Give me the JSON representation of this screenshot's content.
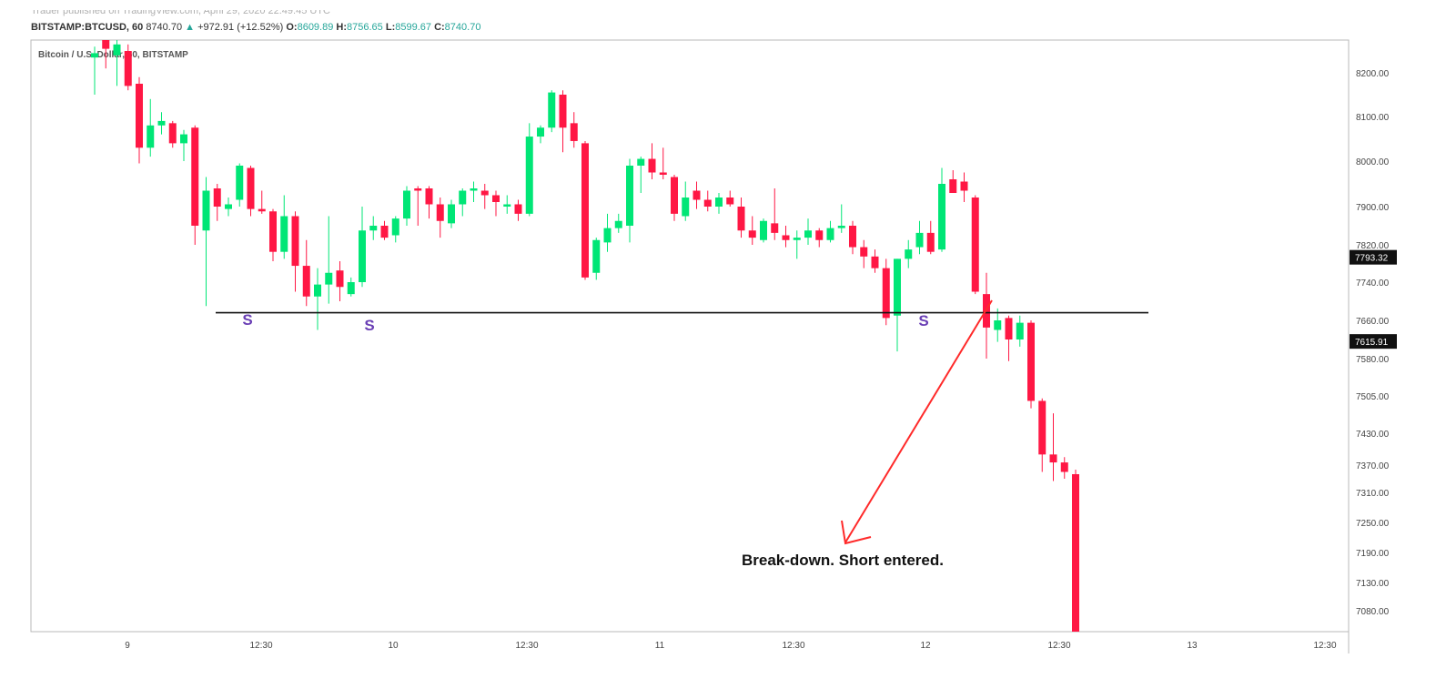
{
  "header": {
    "top_line": "Trader published on TradingView.com, April 29, 2020 22:49:45 UTC",
    "symbol": "BITSTAMP:BTCUSD, 60",
    "last": "8740.70",
    "change": "+972.91 (+12.52%)",
    "open_label": "O:",
    "open": "8609.89",
    "high_label": "H:",
    "high": "8756.65",
    "low_label": "L:",
    "low": "8599.67",
    "close_label": "C:",
    "close": "8740.70"
  },
  "chart_data": {
    "type": "candlestick",
    "title": "Bitcoin / U.S. Dollar, 60, BITSTAMP",
    "up_color": "#00e676",
    "down_color": "#ff1744",
    "y_ticks": [
      8200,
      8100,
      8000,
      7900,
      7820,
      7740,
      7660,
      7580,
      7505,
      7430,
      7370,
      7310,
      7250,
      7190,
      7130,
      7080
    ],
    "y_tick_labels": [
      "8200.00",
      "8100.00",
      "8000.00",
      "7900.00",
      "7820.00",
      "7740.00",
      "7660.00",
      "7580.00",
      "7505.00",
      "7430.00",
      "7370.00",
      "7310.00",
      "7250.00",
      "7190.00",
      "7130.00",
      "7080.00"
    ],
    "x_tick_labels": [
      "9",
      "12:30",
      "10",
      "12:30",
      "11",
      "12:30",
      "12",
      "12:30",
      "13",
      "12:30"
    ],
    "price_tags": [
      {
        "label": "7793.32",
        "value": 7793.32
      },
      {
        "label": "7615.91",
        "value": 7615.91
      }
    ],
    "support_level": 7676,
    "support_markers": [
      "S",
      "S",
      "S"
    ],
    "annotation": "Break-down. Short entered.",
    "candles": [
      {
        "o": 8235,
        "h": 8260,
        "l": 8150,
        "c": 8245
      },
      {
        "o": 8300,
        "h": 8320,
        "l": 8210,
        "c": 8255
      },
      {
        "o": 8240,
        "h": 8300,
        "l": 8170,
        "c": 8265
      },
      {
        "o": 8250,
        "h": 8265,
        "l": 8160,
        "c": 8170
      },
      {
        "o": 8175,
        "h": 8190,
        "l": 7995,
        "c": 8030
      },
      {
        "o": 8030,
        "h": 8140,
        "l": 8010,
        "c": 8080
      },
      {
        "o": 8080,
        "h": 8110,
        "l": 8060,
        "c": 8090
      },
      {
        "o": 8085,
        "h": 8090,
        "l": 8030,
        "c": 8040
      },
      {
        "o": 8040,
        "h": 8070,
        "l": 8000,
        "c": 8060
      },
      {
        "o": 8075,
        "h": 8080,
        "l": 7820,
        "c": 7860
      },
      {
        "o": 7850,
        "h": 7965,
        "l": 7690,
        "c": 7935
      },
      {
        "o": 7940,
        "h": 7950,
        "l": 7870,
        "c": 7900
      },
      {
        "o": 7895,
        "h": 7920,
        "l": 7880,
        "c": 7905
      },
      {
        "o": 7915,
        "h": 7995,
        "l": 7900,
        "c": 7990
      },
      {
        "o": 7985,
        "h": 7990,
        "l": 7880,
        "c": 7895
      },
      {
        "o": 7895,
        "h": 7935,
        "l": 7885,
        "c": 7890
      },
      {
        "o": 7890,
        "h": 7895,
        "l": 7785,
        "c": 7805
      },
      {
        "o": 7805,
        "h": 7925,
        "l": 7790,
        "c": 7880
      },
      {
        "o": 7880,
        "h": 7890,
        "l": 7720,
        "c": 7775
      },
      {
        "o": 7775,
        "h": 7830,
        "l": 7690,
        "c": 7710
      },
      {
        "o": 7710,
        "h": 7770,
        "l": 7640,
        "c": 7735
      },
      {
        "o": 7735,
        "h": 7880,
        "l": 7695,
        "c": 7760
      },
      {
        "o": 7765,
        "h": 7785,
        "l": 7700,
        "c": 7730
      },
      {
        "o": 7715,
        "h": 7750,
        "l": 7710,
        "c": 7740
      },
      {
        "o": 7740,
        "h": 7900,
        "l": 7730,
        "c": 7850
      },
      {
        "o": 7850,
        "h": 7880,
        "l": 7830,
        "c": 7860
      },
      {
        "o": 7860,
        "h": 7870,
        "l": 7830,
        "c": 7835
      },
      {
        "o": 7840,
        "h": 7880,
        "l": 7825,
        "c": 7875
      },
      {
        "o": 7875,
        "h": 7945,
        "l": 7860,
        "c": 7935
      },
      {
        "o": 7940,
        "h": 7945,
        "l": 7860,
        "c": 7935
      },
      {
        "o": 7940,
        "h": 7945,
        "l": 7875,
        "c": 7905
      },
      {
        "o": 7905,
        "h": 7920,
        "l": 7835,
        "c": 7870
      },
      {
        "o": 7865,
        "h": 7915,
        "l": 7855,
        "c": 7905
      },
      {
        "o": 7905,
        "h": 7940,
        "l": 7880,
        "c": 7935
      },
      {
        "o": 7935,
        "h": 7955,
        "l": 7910,
        "c": 7940
      },
      {
        "o": 7935,
        "h": 7950,
        "l": 7895,
        "c": 7925
      },
      {
        "o": 7925,
        "h": 7935,
        "l": 7880,
        "c": 7910
      },
      {
        "o": 7900,
        "h": 7925,
        "l": 7885,
        "c": 7905
      },
      {
        "o": 7905,
        "h": 7915,
        "l": 7870,
        "c": 7885
      },
      {
        "o": 7885,
        "h": 8085,
        "l": 7880,
        "c": 8055
      },
      {
        "o": 8055,
        "h": 8080,
        "l": 8040,
        "c": 8075
      },
      {
        "o": 8075,
        "h": 8160,
        "l": 8065,
        "c": 8155
      },
      {
        "o": 8150,
        "h": 8160,
        "l": 8020,
        "c": 8075
      },
      {
        "o": 8085,
        "h": 8110,
        "l": 8030,
        "c": 8045
      },
      {
        "o": 8040,
        "h": 8045,
        "l": 7745,
        "c": 7750
      },
      {
        "o": 7760,
        "h": 7835,
        "l": 7745,
        "c": 7830
      },
      {
        "o": 7825,
        "h": 7885,
        "l": 7805,
        "c": 7855
      },
      {
        "o": 7855,
        "h": 7885,
        "l": 7845,
        "c": 7870
      },
      {
        "o": 7860,
        "h": 8005,
        "l": 7825,
        "c": 7990
      },
      {
        "o": 7990,
        "h": 8010,
        "l": 7930,
        "c": 8005
      },
      {
        "o": 8005,
        "h": 8040,
        "l": 7960,
        "c": 7975
      },
      {
        "o": 7975,
        "h": 8030,
        "l": 7960,
        "c": 7970
      },
      {
        "o": 7965,
        "h": 7970,
        "l": 7870,
        "c": 7885
      },
      {
        "o": 7880,
        "h": 7955,
        "l": 7870,
        "c": 7920
      },
      {
        "o": 7935,
        "h": 7955,
        "l": 7895,
        "c": 7915
      },
      {
        "o": 7915,
        "h": 7935,
        "l": 7890,
        "c": 7900
      },
      {
        "o": 7900,
        "h": 7930,
        "l": 7885,
        "c": 7920
      },
      {
        "o": 7920,
        "h": 7935,
        "l": 7900,
        "c": 7905
      },
      {
        "o": 7900,
        "h": 7920,
        "l": 7835,
        "c": 7850
      },
      {
        "o": 7850,
        "h": 7880,
        "l": 7820,
        "c": 7835
      },
      {
        "o": 7830,
        "h": 7875,
        "l": 7825,
        "c": 7870
      },
      {
        "o": 7865,
        "h": 7940,
        "l": 7830,
        "c": 7845
      },
      {
        "o": 7840,
        "h": 7860,
        "l": 7815,
        "c": 7830
      },
      {
        "o": 7830,
        "h": 7850,
        "l": 7790,
        "c": 7835
      },
      {
        "o": 7835,
        "h": 7875,
        "l": 7820,
        "c": 7850
      },
      {
        "o": 7850,
        "h": 7855,
        "l": 7815,
        "c": 7830
      },
      {
        "o": 7830,
        "h": 7870,
        "l": 7825,
        "c": 7855
      },
      {
        "o": 7855,
        "h": 7905,
        "l": 7845,
        "c": 7860
      },
      {
        "o": 7860,
        "h": 7870,
        "l": 7800,
        "c": 7815
      },
      {
        "o": 7815,
        "h": 7830,
        "l": 7770,
        "c": 7795
      },
      {
        "o": 7795,
        "h": 7810,
        "l": 7760,
        "c": 7770
      },
      {
        "o": 7770,
        "h": 7790,
        "l": 7650,
        "c": 7665
      },
      {
        "o": 7670,
        "h": 7790,
        "l": 7595,
        "c": 7790
      },
      {
        "o": 7790,
        "h": 7830,
        "l": 7770,
        "c": 7810
      },
      {
        "o": 7815,
        "h": 7870,
        "l": 7800,
        "c": 7845
      },
      {
        "o": 7845,
        "h": 7870,
        "l": 7800,
        "c": 7805
      },
      {
        "o": 7810,
        "h": 7985,
        "l": 7805,
        "c": 7950
      },
      {
        "o": 7960,
        "h": 7980,
        "l": 7930,
        "c": 7930
      },
      {
        "o": 7955,
        "h": 7975,
        "l": 7910,
        "c": 7935
      },
      {
        "o": 7920,
        "h": 7925,
        "l": 7715,
        "c": 7720
      },
      {
        "o": 7715,
        "h": 7760,
        "l": 7580,
        "c": 7645
      },
      {
        "o": 7640,
        "h": 7685,
        "l": 7615,
        "c": 7660
      },
      {
        "o": 7665,
        "h": 7670,
        "l": 7575,
        "c": 7620
      },
      {
        "o": 7620,
        "h": 7670,
        "l": 7605,
        "c": 7655
      },
      {
        "o": 7655,
        "h": 7660,
        "l": 7480,
        "c": 7495
      },
      {
        "o": 7495,
        "h": 7500,
        "l": 7355,
        "c": 7390
      },
      {
        "o": 7390,
        "h": 7470,
        "l": 7335,
        "c": 7375
      },
      {
        "o": 7375,
        "h": 7385,
        "l": 7340,
        "c": 7355
      },
      {
        "o": 7350,
        "h": 7360,
        "l": 7040,
        "c": 7040
      }
    ]
  }
}
